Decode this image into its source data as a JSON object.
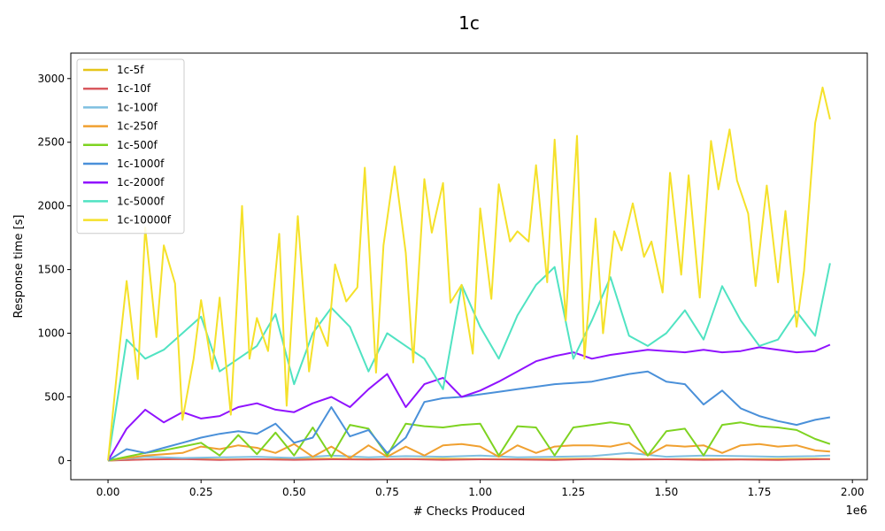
{
  "chart_data": {
    "type": "line",
    "title": "1c",
    "xlabel": "# Checks Produced",
    "ylabel": "Response time [s]",
    "x_offset_label": "1e6",
    "xlim": [
      -0.1,
      2.04
    ],
    "ylim": [
      -150,
      3200
    ],
    "xticks": [
      0.0,
      0.25,
      0.5,
      0.75,
      1.0,
      1.25,
      1.5,
      1.75,
      2.0
    ],
    "xtick_labels": [
      "0.00",
      "0.25",
      "0.50",
      "0.75",
      "1.00",
      "1.25",
      "1.50",
      "1.75",
      "2.00"
    ],
    "yticks": [
      0,
      500,
      1000,
      1500,
      2000,
      2500,
      3000
    ],
    "ytick_labels": [
      "0",
      "500",
      "1000",
      "1500",
      "2000",
      "2500",
      "3000"
    ],
    "grid": false,
    "legend_position": "top-left",
    "series": [
      {
        "name": "1c-5f",
        "color": "#e6c619",
        "x": [
          0.0,
          0.1,
          0.2,
          0.3,
          0.4,
          0.5,
          0.6,
          0.7,
          0.8,
          0.9,
          1.0,
          1.1,
          1.2,
          1.3,
          1.4,
          1.5,
          1.6,
          1.7,
          1.8,
          1.9,
          1.94
        ],
        "values": [
          0,
          10,
          12,
          8,
          10,
          12,
          15,
          10,
          12,
          14,
          12,
          10,
          12,
          14,
          12,
          10,
          12,
          10,
          12,
          14,
          12
        ]
      },
      {
        "name": "1c-10f",
        "color": "#d9595f",
        "x": [
          0.0,
          0.1,
          0.2,
          0.3,
          0.4,
          0.5,
          0.6,
          0.7,
          0.8,
          0.9,
          1.0,
          1.1,
          1.2,
          1.3,
          1.4,
          1.5,
          1.6,
          1.7,
          1.8,
          1.9,
          1.94
        ],
        "values": [
          0,
          8,
          12,
          5,
          10,
          6,
          10,
          8,
          12,
          6,
          10,
          8,
          5,
          12,
          8,
          10,
          6,
          8,
          5,
          10,
          12
        ]
      },
      {
        "name": "1c-100f",
        "color": "#7fbfe0",
        "x": [
          0.0,
          0.1,
          0.2,
          0.3,
          0.4,
          0.5,
          0.6,
          0.7,
          0.8,
          0.9,
          1.0,
          1.1,
          1.2,
          1.3,
          1.4,
          1.5,
          1.6,
          1.7,
          1.8,
          1.9,
          1.94
        ],
        "values": [
          0,
          30,
          20,
          25,
          30,
          20,
          40,
          25,
          35,
          30,
          40,
          25,
          30,
          35,
          60,
          30,
          40,
          35,
          30,
          35,
          40
        ]
      },
      {
        "name": "1c-250f",
        "color": "#f0a030",
        "x": [
          0.0,
          0.1,
          0.2,
          0.25,
          0.3,
          0.35,
          0.4,
          0.45,
          0.5,
          0.55,
          0.6,
          0.65,
          0.7,
          0.75,
          0.8,
          0.85,
          0.9,
          0.95,
          1.0,
          1.05,
          1.1,
          1.15,
          1.2,
          1.25,
          1.3,
          1.35,
          1.4,
          1.45,
          1.5,
          1.55,
          1.6,
          1.65,
          1.7,
          1.75,
          1.8,
          1.85,
          1.9,
          1.94
        ],
        "values": [
          0,
          40,
          60,
          110,
          90,
          120,
          100,
          60,
          130,
          30,
          110,
          20,
          120,
          30,
          110,
          40,
          120,
          130,
          110,
          30,
          120,
          60,
          110,
          120,
          120,
          110,
          140,
          40,
          120,
          110,
          120,
          60,
          120,
          130,
          110,
          120,
          80,
          70
        ]
      },
      {
        "name": "1c-500f",
        "color": "#7ed321",
        "x": [
          0.0,
          0.05,
          0.1,
          0.15,
          0.2,
          0.25,
          0.3,
          0.35,
          0.4,
          0.45,
          0.5,
          0.55,
          0.6,
          0.65,
          0.7,
          0.75,
          0.8,
          0.85,
          0.9,
          0.95,
          1.0,
          1.05,
          1.1,
          1.15,
          1.2,
          1.25,
          1.3,
          1.35,
          1.4,
          1.45,
          1.5,
          1.55,
          1.6,
          1.65,
          1.7,
          1.75,
          1.8,
          1.85,
          1.9,
          1.94
        ],
        "values": [
          0,
          30,
          60,
          80,
          110,
          140,
          40,
          200,
          50,
          220,
          40,
          260,
          30,
          280,
          250,
          40,
          290,
          270,
          260,
          280,
          290,
          40,
          270,
          260,
          40,
          260,
          280,
          300,
          280,
          40,
          230,
          250,
          40,
          280,
          300,
          270,
          260,
          240,
          170,
          130
        ]
      },
      {
        "name": "1c-1000f",
        "color": "#4a90d9",
        "x": [
          0.0,
          0.05,
          0.1,
          0.15,
          0.2,
          0.25,
          0.3,
          0.35,
          0.4,
          0.45,
          0.5,
          0.55,
          0.6,
          0.65,
          0.7,
          0.75,
          0.8,
          0.85,
          0.9,
          0.95,
          1.0,
          1.05,
          1.1,
          1.15,
          1.2,
          1.25,
          1.3,
          1.35,
          1.4,
          1.45,
          1.5,
          1.55,
          1.6,
          1.65,
          1.7,
          1.75,
          1.8,
          1.85,
          1.9,
          1.94
        ],
        "values": [
          0,
          90,
          60,
          100,
          140,
          180,
          210,
          230,
          210,
          290,
          140,
          180,
          420,
          190,
          240,
          60,
          180,
          460,
          490,
          500,
          520,
          540,
          560,
          580,
          600,
          610,
          620,
          650,
          680,
          700,
          620,
          600,
          440,
          550,
          410,
          350,
          310,
          280,
          320,
          340
        ]
      },
      {
        "name": "1c-2000f",
        "color": "#9013fe",
        "x": [
          0.0,
          0.05,
          0.1,
          0.15,
          0.2,
          0.25,
          0.3,
          0.35,
          0.4,
          0.45,
          0.5,
          0.55,
          0.6,
          0.65,
          0.7,
          0.75,
          0.8,
          0.85,
          0.9,
          0.95,
          1.0,
          1.05,
          1.1,
          1.15,
          1.2,
          1.25,
          1.3,
          1.35,
          1.4,
          1.45,
          1.5,
          1.55,
          1.6,
          1.65,
          1.7,
          1.75,
          1.8,
          1.85,
          1.9,
          1.94
        ],
        "values": [
          0,
          250,
          400,
          300,
          380,
          330,
          350,
          420,
          450,
          400,
          380,
          450,
          500,
          420,
          560,
          680,
          420,
          600,
          650,
          500,
          550,
          620,
          700,
          780,
          820,
          850,
          800,
          830,
          850,
          870,
          860,
          850,
          870,
          850,
          860,
          890,
          870,
          850,
          860,
          910
        ]
      },
      {
        "name": "1c-5000f",
        "color": "#50e3c2",
        "x": [
          0.0,
          0.05,
          0.1,
          0.15,
          0.2,
          0.25,
          0.3,
          0.35,
          0.4,
          0.45,
          0.5,
          0.55,
          0.6,
          0.65,
          0.7,
          0.75,
          0.8,
          0.85,
          0.9,
          0.95,
          1.0,
          1.05,
          1.1,
          1.15,
          1.2,
          1.25,
          1.3,
          1.35,
          1.4,
          1.45,
          1.5,
          1.55,
          1.6,
          1.65,
          1.7,
          1.75,
          1.8,
          1.85,
          1.9,
          1.94
        ],
        "values": [
          0,
          950,
          800,
          870,
          1000,
          1130,
          700,
          800,
          900,
          1150,
          600,
          1000,
          1200,
          1050,
          700,
          1000,
          900,
          800,
          560,
          1380,
          1050,
          800,
          1140,
          1380,
          1520,
          800,
          1100,
          1440,
          980,
          900,
          1000,
          1180,
          950,
          1370,
          1100,
          900,
          950,
          1170,
          980,
          1550
        ]
      },
      {
        "name": "1c-10000f",
        "color": "#f5e12a",
        "x": [
          0.0,
          0.03,
          0.05,
          0.08,
          0.1,
          0.13,
          0.15,
          0.18,
          0.2,
          0.23,
          0.25,
          0.28,
          0.3,
          0.33,
          0.36,
          0.38,
          0.4,
          0.43,
          0.46,
          0.48,
          0.51,
          0.54,
          0.56,
          0.59,
          0.61,
          0.64,
          0.67,
          0.69,
          0.72,
          0.74,
          0.77,
          0.8,
          0.82,
          0.85,
          0.87,
          0.9,
          0.92,
          0.95,
          0.98,
          1.0,
          1.03,
          1.05,
          1.08,
          1.1,
          1.13,
          1.15,
          1.18,
          1.2,
          1.23,
          1.26,
          1.28,
          1.31,
          1.33,
          1.36,
          1.38,
          1.41,
          1.44,
          1.46,
          1.49,
          1.51,
          1.54,
          1.56,
          1.59,
          1.62,
          1.64,
          1.67,
          1.69,
          1.72,
          1.74,
          1.77,
          1.8,
          1.82,
          1.85,
          1.87,
          1.9,
          1.92,
          1.94
        ],
        "values": [
          0,
          870,
          1410,
          640,
          1830,
          970,
          1690,
          1390,
          320,
          800,
          1260,
          720,
          1280,
          360,
          2000,
          800,
          1120,
          860,
          1780,
          430,
          1920,
          700,
          1120,
          900,
          1540,
          1250,
          1360,
          2300,
          690,
          1690,
          2310,
          1630,
          770,
          2210,
          1790,
          2180,
          1240,
          1380,
          840,
          1980,
          1270,
          2170,
          1720,
          1800,
          1720,
          2320,
          1400,
          2520,
          1100,
          2550,
          800,
          1900,
          1000,
          1800,
          1650,
          2020,
          1600,
          1720,
          1320,
          2260,
          1460,
          2240,
          1280,
          2510,
          2130,
          2600,
          2200,
          1940,
          1370,
          2160,
          1400,
          1960,
          1050,
          1490,
          2650,
          2930,
          2680
        ]
      }
    ]
  }
}
